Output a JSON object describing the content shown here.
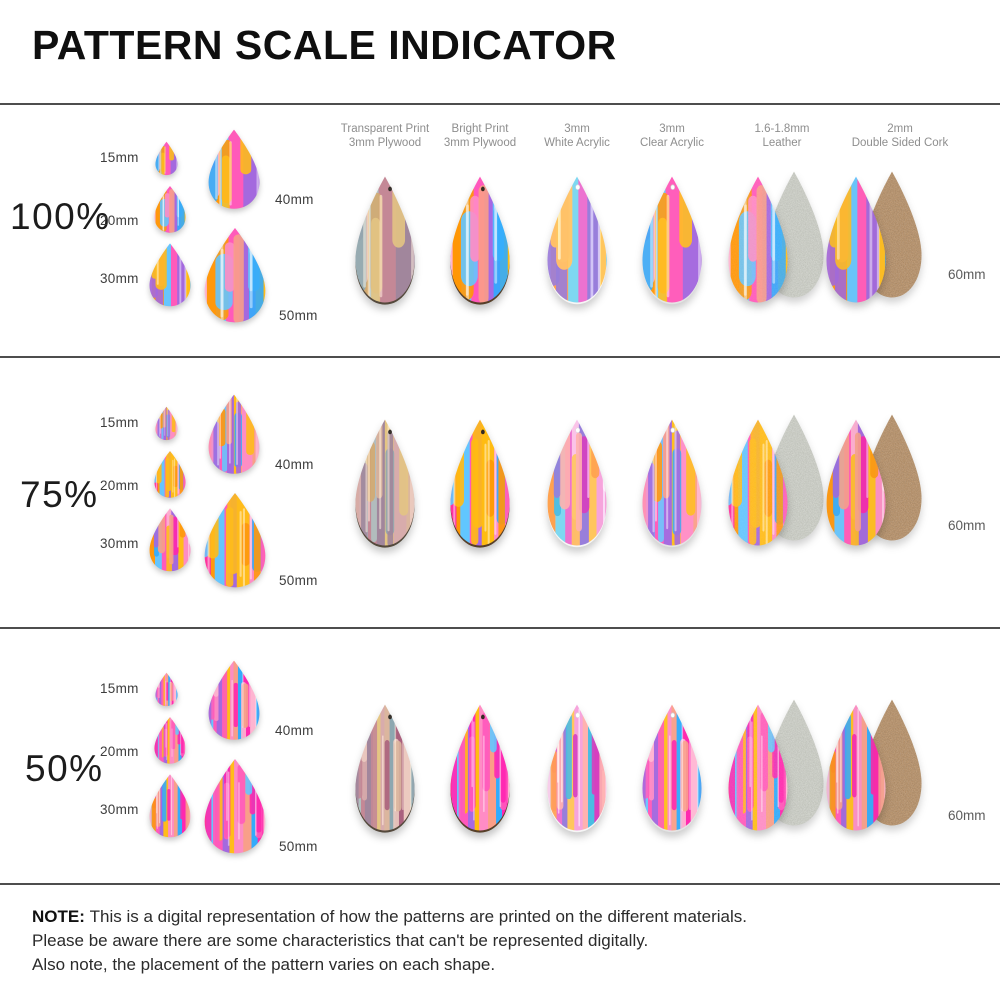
{
  "title": "PATTERN SCALE INDICATOR",
  "columns": [
    {
      "line1": "Transparent Print",
      "line2": "3mm Plywood"
    },
    {
      "line1": "Bright Print",
      "line2": "3mm Plywood"
    },
    {
      "line1": "3mm",
      "line2": "White Acrylic"
    },
    {
      "line1": "3mm",
      "line2": "Clear Acrylic"
    },
    {
      "line1": "1.6-1.8mm",
      "line2": "Leather"
    },
    {
      "line1": "2mm",
      "line2": "Double Sided Cork"
    }
  ],
  "rows": [
    {
      "scale_label": "100%",
      "scale_pct": 100
    },
    {
      "scale_label": "75%",
      "scale_pct": 75
    },
    {
      "scale_label": "50%",
      "scale_pct": 50
    }
  ],
  "size_labels": {
    "s15": "15mm",
    "s20": "20mm",
    "s30": "30mm",
    "s40": "40mm",
    "s50": "50mm",
    "s60": "60mm"
  },
  "note": {
    "label": "NOTE:",
    "line1": "This is a digital representation of how the patterns are printed on the different materials.",
    "line2": "Please be aware there are some characteristics that can't be represented digitally.",
    "line3": "Also note, the placement of the pattern varies on each shape."
  },
  "colors": {
    "title_text": "#0f0f0f",
    "divider": "#4e4e4e",
    "header_text": "#8e8e8e",
    "size_label_text": "#3d3d3d",
    "note_text": "#2b2b2b",
    "paint_base": "#f2a9c4",
    "paint_palette": [
      "#3fa9ef",
      "#ee2da6",
      "#f8b7d0",
      "#f5991d",
      "#6ec3f5",
      "#f75fb4",
      "#a06bd4",
      "#f8bc2c",
      "#f490c1",
      "#f0a18d"
    ],
    "leather": "#ced1c7",
    "cork": "#c59a6d",
    "wood_edge": "#54402d",
    "acrylic_edge": "#e0e0e0",
    "wood_tint": "#a97b4e"
  }
}
